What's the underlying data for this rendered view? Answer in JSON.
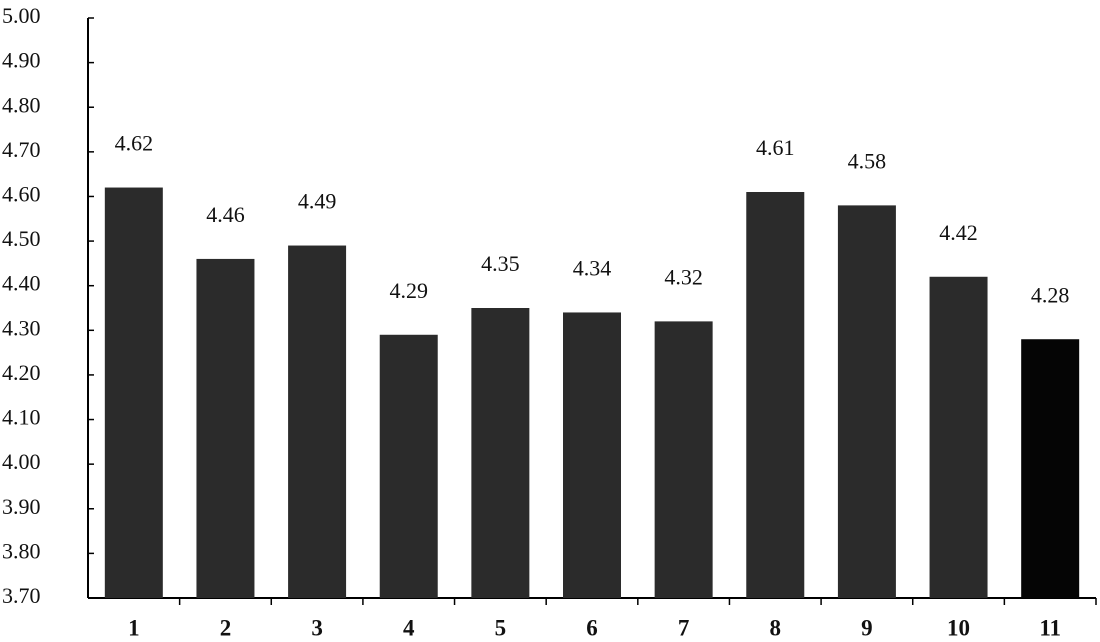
{
  "chart_data": {
    "type": "bar",
    "categories": [
      "1",
      "2",
      "3",
      "4",
      "5",
      "6",
      "7",
      "8",
      "9",
      "10",
      "11"
    ],
    "values": [
      4.62,
      4.46,
      4.49,
      4.29,
      4.35,
      4.34,
      4.32,
      4.61,
      4.58,
      4.42,
      4.28
    ],
    "colors": [
      "#2b2b2b",
      "#2b2b2b",
      "#2b2b2b",
      "#2b2b2b",
      "#2b2b2b",
      "#2b2b2b",
      "#2b2b2b",
      "#2b2b2b",
      "#2b2b2b",
      "#2b2b2b",
      "#050505"
    ],
    "ylim": [
      3.7,
      5.0
    ],
    "yticks": [
      {
        "value": 3.7,
        "label": "3.70"
      },
      {
        "value": 3.8,
        "label": "3.80"
      },
      {
        "value": 3.9,
        "label": "3.90"
      },
      {
        "value": 4.0,
        "label": "4.00"
      },
      {
        "value": 4.1,
        "label": "4.10"
      },
      {
        "value": 4.2,
        "label": "4.20"
      },
      {
        "value": 4.3,
        "label": "4.30"
      },
      {
        "value": 4.4,
        "label": "4.40"
      },
      {
        "value": 4.5,
        "label": "4.50"
      },
      {
        "value": 4.6,
        "label": "4.60"
      },
      {
        "value": 4.7,
        "label": "4.70"
      },
      {
        "value": 4.8,
        "label": "4.80"
      },
      {
        "value": 4.9,
        "label": "4.90"
      },
      {
        "value": 5.0,
        "label": "5.00"
      }
    ],
    "grid": false
  }
}
